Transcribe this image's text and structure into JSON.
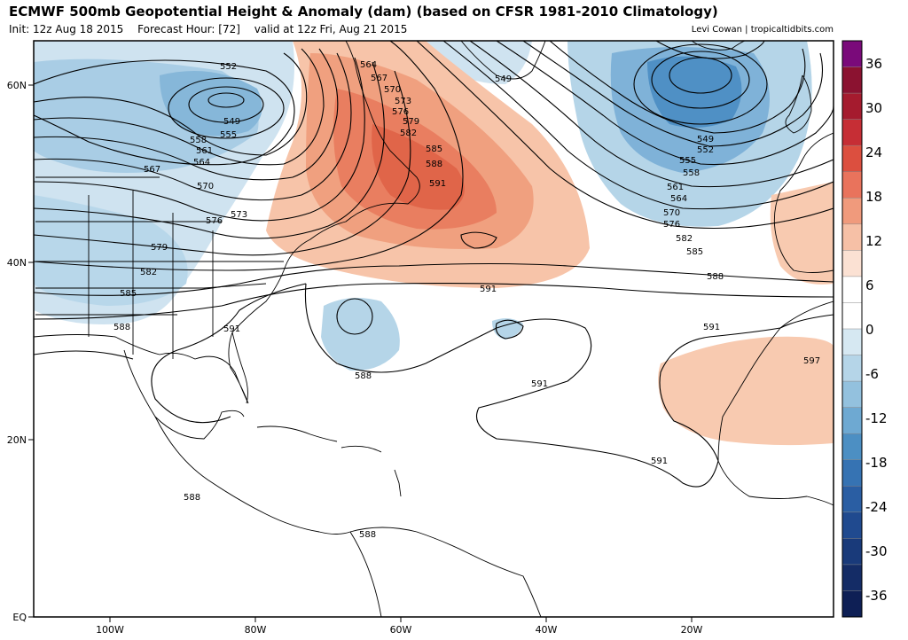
{
  "header": {
    "title": "ECMWF 500mb Geopotential Height & Anomaly (dam) (based on CFSR 1981-2010 Climatology)",
    "init": "Init: 12z Aug 18 2015",
    "forecast_hour": "Forecast Hour: [72]",
    "valid": "valid at 12z Fri, Aug 21 2015",
    "credit": "Levi Cowan | tropicaltidbits.com"
  },
  "map": {
    "lat_labels": [
      "60N",
      "40N",
      "20N",
      "EQ"
    ],
    "lon_labels": [
      "100W",
      "80W",
      "60W",
      "40W",
      "20W"
    ],
    "contour_labels": [
      "552",
      "549",
      "555",
      "558",
      "561",
      "564",
      "567",
      "570",
      "573",
      "576",
      "579",
      "582",
      "585",
      "588",
      "591",
      "564",
      "567",
      "570",
      "573",
      "576",
      "579",
      "582",
      "585",
      "588",
      "591",
      "549",
      "549",
      "552",
      "555",
      "558",
      "561",
      "564",
      "570",
      "576",
      "582",
      "585",
      "588",
      "591",
      "591",
      "591",
      "591",
      "588",
      "588",
      "588",
      "597"
    ]
  },
  "colorbar": {
    "ticks": [
      "36",
      "30",
      "24",
      "18",
      "12",
      "6",
      "0",
      "-6",
      "-12",
      "-18",
      "-24",
      "-30",
      "-36"
    ],
    "colors": [
      "#7a0a7a",
      "#8b1230",
      "#a51b2e",
      "#c62e35",
      "#dc4f3f",
      "#e9735c",
      "#f09a7c",
      "#f6c0a6",
      "#fbe1d3",
      "#ffffff",
      "#ffffff",
      "#d6e8f2",
      "#b5d5e8",
      "#93c1de",
      "#6ea9d2",
      "#4c8fc3",
      "#3673b3",
      "#2a5ea3",
      "#204a8f",
      "#193a7a",
      "#142c66",
      "#0e1f55"
    ]
  }
}
